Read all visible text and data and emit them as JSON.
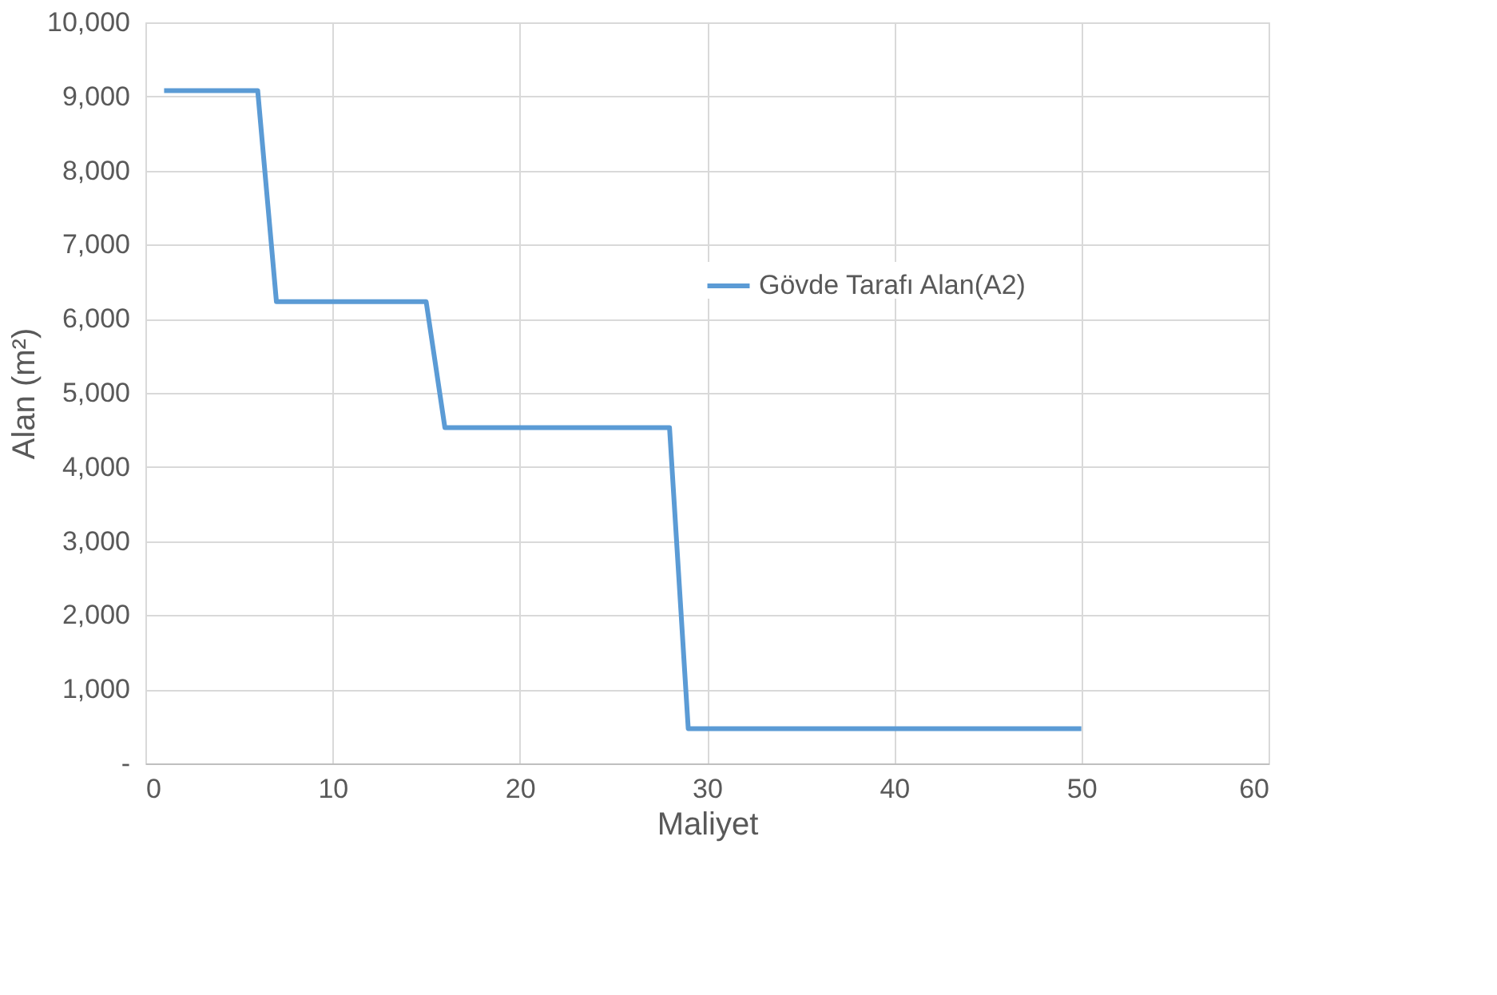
{
  "chart_data": {
    "type": "line",
    "xlabel": "Maliyet",
    "ylabel": "Alan (m²)",
    "x": [
      1,
      6,
      7,
      15,
      16,
      28,
      29,
      50
    ],
    "series": [
      {
        "name": "Gövde Tarafı Alan(A2)",
        "color": "#5b9bd5",
        "values": [
          9080,
          9080,
          6230,
          6230,
          4530,
          4530,
          470,
          470
        ]
      }
    ],
    "xlim": [
      0,
      60
    ],
    "xticks": [
      0,
      10,
      20,
      30,
      40,
      50,
      60
    ],
    "ylim": [
      0,
      10000
    ],
    "yticks": [
      {
        "value": 0,
        "label": "-"
      },
      {
        "value": 1000,
        "label": "1,000"
      },
      {
        "value": 2000,
        "label": "2,000"
      },
      {
        "value": 3000,
        "label": "3,000"
      },
      {
        "value": 4000,
        "label": "4,000"
      },
      {
        "value": 5000,
        "label": "5,000"
      },
      {
        "value": 6000,
        "label": "6,000"
      },
      {
        "value": 7000,
        "label": "7,000"
      },
      {
        "value": 8000,
        "label": "8,000"
      },
      {
        "value": 9000,
        "label": "9,000"
      },
      {
        "value": 10000,
        "label": "10,000"
      }
    ],
    "grid": true,
    "legend": "top right",
    "marker": "none",
    "line_style": "solid"
  }
}
